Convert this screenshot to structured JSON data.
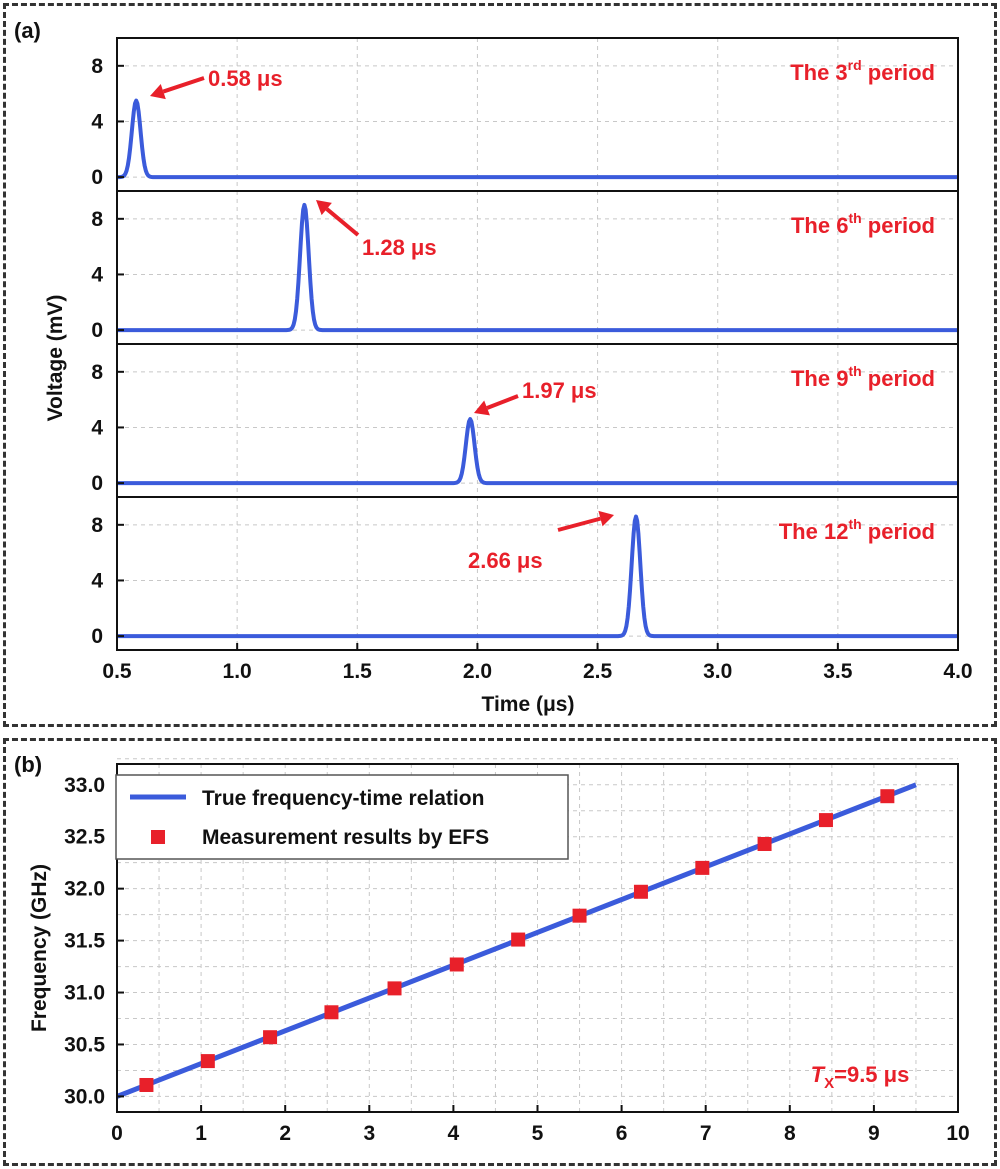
{
  "colors": {
    "line": "#3b5bdb",
    "marker": "#e8202a",
    "annotation": "#e8202a",
    "grid": "#c8c8c8",
    "axis": "#111111"
  },
  "chart_data": [
    {
      "panel_label": "(a)",
      "type": "line",
      "xlabel": "Time (μs)",
      "ylabel": "Voltage (mV)",
      "xlim": [
        0.5,
        4.0
      ],
      "ylim": [
        -1,
        10
      ],
      "xticks": [
        "0.5",
        "1.0",
        "1.5",
        "2.0",
        "2.5",
        "3.0",
        "3.5",
        "4.0"
      ],
      "yticks": [
        "0",
        "4",
        "8"
      ],
      "grid": true,
      "subplots": [
        {
          "period_label": {
            "pre": "The 3",
            "sup": "rd",
            "post": " period"
          },
          "peak": {
            "x": 0.58,
            "y": 5.5
          },
          "pulse_width": 0.018,
          "annotation": "0.58 μs"
        },
        {
          "period_label": {
            "pre": "The 6",
            "sup": "th",
            "post": " period"
          },
          "peak": {
            "x": 1.28,
            "y": 9.0
          },
          "pulse_width": 0.018,
          "annotation": "1.28 μs"
        },
        {
          "period_label": {
            "pre": "The 9",
            "sup": "th",
            "post": " period"
          },
          "peak": {
            "x": 1.97,
            "y": 4.6
          },
          "pulse_width": 0.018,
          "annotation": "1.97 μs"
        },
        {
          "period_label": {
            "pre": "The 12",
            "sup": "th",
            "post": " period"
          },
          "peak": {
            "x": 2.66,
            "y": 8.6
          },
          "pulse_width": 0.018,
          "annotation": "2.66 μs"
        }
      ]
    },
    {
      "panel_label": "(b)",
      "type": "line+scatter",
      "xlabel": "",
      "ylabel": "Frequency (GHz)",
      "xlim": [
        0,
        10
      ],
      "ylim": [
        29.85,
        33.2
      ],
      "xticks": [
        "0",
        "1",
        "2",
        "3",
        "4",
        "5",
        "6",
        "7",
        "8",
        "9",
        "10"
      ],
      "yticks": [
        "30.0",
        "30.5",
        "31.0",
        "31.5",
        "32.0",
        "32.5",
        "33.0"
      ],
      "grid": true,
      "legend_position": "top-left",
      "series": [
        {
          "name": "True frequency-time relation",
          "kind": "line",
          "x": [
            0,
            9.5
          ],
          "y": [
            30.0,
            33.0
          ]
        },
        {
          "name": "Measurement results by EFS",
          "kind": "scatter",
          "x": [
            0.35,
            1.08,
            1.82,
            2.55,
            3.3,
            4.04,
            4.77,
            5.5,
            6.23,
            6.96,
            7.7,
            8.43,
            9.16
          ],
          "y": [
            30.11,
            30.34,
            30.57,
            30.81,
            31.04,
            31.27,
            31.51,
            31.74,
            31.97,
            32.2,
            32.43,
            32.66,
            32.89
          ]
        }
      ],
      "annotation": {
        "italic": "T",
        "sub": "X",
        "rest": "=9.5 μs"
      }
    }
  ]
}
